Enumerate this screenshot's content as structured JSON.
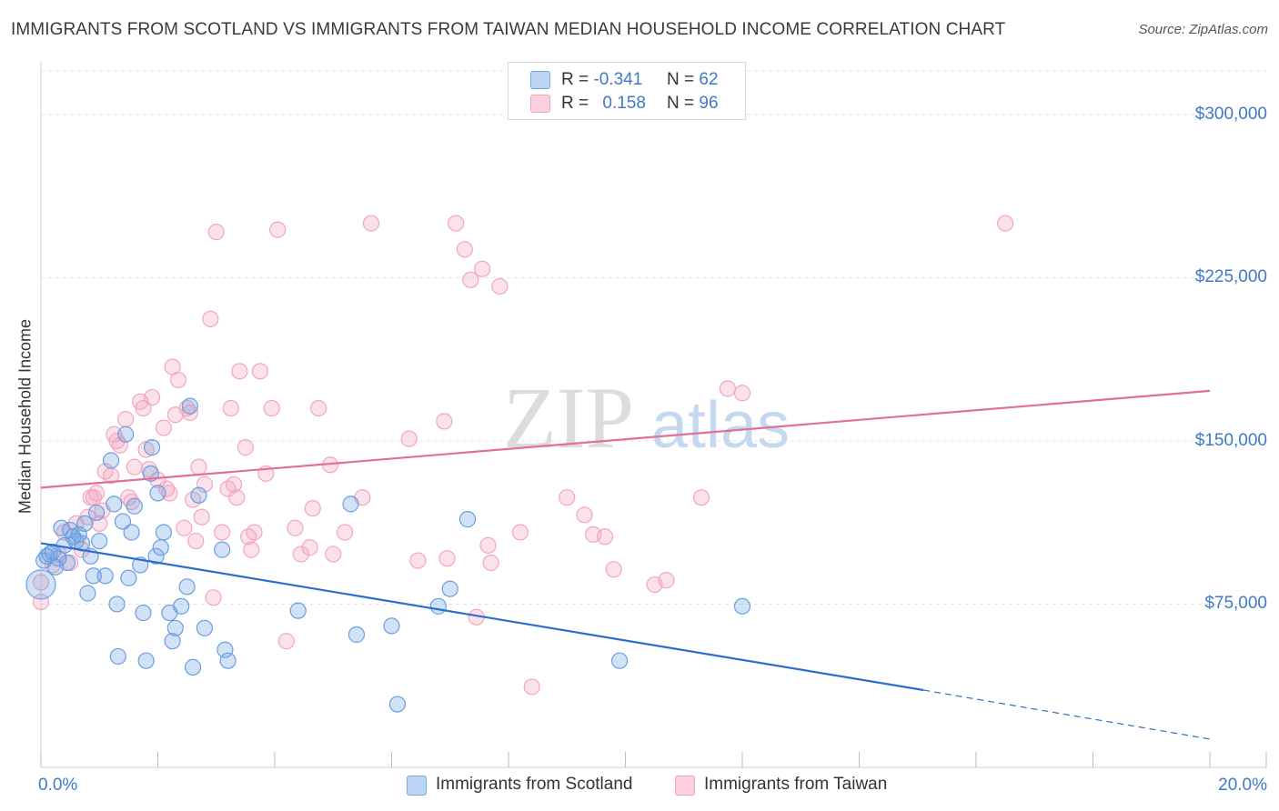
{
  "header": {
    "title": "IMMIGRANTS FROM SCOTLAND VS IMMIGRANTS FROM TAIWAN MEDIAN HOUSEHOLD INCOME CORRELATION CHART",
    "source": "Source: ZipAtlas.com"
  },
  "watermark": {
    "text_zip": "ZIP",
    "text_atlas": "atlas"
  },
  "legend": {
    "scotland": {
      "r_label": "R =",
      "r_value": "-0.341",
      "n_label": "N =",
      "n_value": "62",
      "color": "#8ab4e8"
    },
    "taiwan": {
      "r_label": "R =",
      "r_value": "0.158",
      "n_label": "N =",
      "n_value": "96",
      "color": "#f2a6bf"
    }
  },
  "chart_data": {
    "type": "scatter",
    "title": "IMMIGRANTS FROM SCOTLAND VS IMMIGRANTS FROM TAIWAN MEDIAN HOUSEHOLD INCOME CORRELATION CHART",
    "xlabel": "",
    "ylabel": "Median Household Income",
    "xlim": [
      0,
      20
    ],
    "ylim": [
      0,
      320000
    ],
    "x_tick_labels": [
      "0.0%",
      "20.0%"
    ],
    "y_ticks": [
      75000,
      150000,
      225000,
      300000
    ],
    "y_tick_labels": [
      "$75,000",
      "$150,000",
      "$225,000",
      "$300,000"
    ],
    "grid": true,
    "legend_position": "top-center",
    "series": [
      {
        "name": "Immigrants from Scotland",
        "color": "#6a9fe0",
        "line_color": "#2a6fcf",
        "trend": {
          "x0": 0,
          "y0": 103000,
          "x1": 15.1,
          "y1": 35500,
          "dash_to_x": 20,
          "dash_to_y": 13000
        },
        "points": [
          [
            0.1,
            97000
          ],
          [
            0.2,
            99000
          ],
          [
            0.3,
            96000
          ],
          [
            0.35,
            110000
          ],
          [
            0.4,
            102000
          ],
          [
            0.45,
            94000
          ],
          [
            0.5,
            109000
          ],
          [
            0.55,
            106000
          ],
          [
            0.6,
            104000
          ],
          [
            0.65,
            107000
          ],
          [
            0.7,
            103000
          ],
          [
            0.75,
            112000
          ],
          [
            0.8,
            80000
          ],
          [
            0.85,
            97000
          ],
          [
            0.9,
            88000
          ],
          [
            0.95,
            117000
          ],
          [
            1.0,
            104000
          ],
          [
            1.1,
            88000
          ],
          [
            1.2,
            141000
          ],
          [
            1.25,
            121000
          ],
          [
            1.3,
            75000
          ],
          [
            1.32,
            51000
          ],
          [
            1.4,
            113000
          ],
          [
            1.45,
            153000
          ],
          [
            1.5,
            87000
          ],
          [
            1.55,
            108000
          ],
          [
            1.6,
            120000
          ],
          [
            1.7,
            93000
          ],
          [
            1.75,
            71000
          ],
          [
            1.8,
            49000
          ],
          [
            1.88,
            135000
          ],
          [
            1.9,
            147000
          ],
          [
            1.97,
            97000
          ],
          [
            2.0,
            126000
          ],
          [
            2.05,
            101000
          ],
          [
            2.1,
            108000
          ],
          [
            2.2,
            71000
          ],
          [
            2.25,
            58000
          ],
          [
            2.3,
            64000
          ],
          [
            2.4,
            74000
          ],
          [
            2.5,
            83000
          ],
          [
            2.55,
            166000
          ],
          [
            2.6,
            46000
          ],
          [
            2.7,
            125000
          ],
          [
            2.8,
            64000
          ],
          [
            3.1,
            100000
          ],
          [
            3.15,
            54000
          ],
          [
            3.2,
            49000
          ],
          [
            4.4,
            72000
          ],
          [
            5.3,
            121000
          ],
          [
            5.4,
            61000
          ],
          [
            6.0,
            65000
          ],
          [
            6.1,
            29000
          ],
          [
            6.8,
            74000
          ],
          [
            7.0,
            82000
          ],
          [
            7.3,
            114000
          ],
          [
            9.9,
            49000
          ],
          [
            12.0,
            74000
          ],
          [
            0.05,
            95000
          ],
          [
            0.15,
            98000
          ],
          [
            0.25,
            92000
          ],
          [
            0.0,
            84000
          ]
        ]
      },
      {
        "name": "Immigrants from Taiwan",
        "color": "#f2a6bf",
        "line_color": "#e0709a",
        "trend": {
          "x0": 0,
          "y0": 128500,
          "x1": 20,
          "y1": 173000
        },
        "points": [
          [
            0.0,
            85000
          ],
          [
            0.0,
            76000
          ],
          [
            0.2,
            93000
          ],
          [
            0.3,
            98000
          ],
          [
            0.4,
            108000
          ],
          [
            0.5,
            94000
          ],
          [
            0.6,
            112000
          ],
          [
            0.7,
            100000
          ],
          [
            0.8,
            115000
          ],
          [
            0.9,
            124000
          ],
          [
            0.95,
            126000
          ],
          [
            1.0,
            112000
          ],
          [
            1.1,
            136000
          ],
          [
            1.2,
            134000
          ],
          [
            1.25,
            153000
          ],
          [
            1.3,
            150000
          ],
          [
            1.35,
            148000
          ],
          [
            1.45,
            160000
          ],
          [
            1.5,
            124000
          ],
          [
            1.55,
            122000
          ],
          [
            1.6,
            138000
          ],
          [
            1.7,
            168000
          ],
          [
            1.75,
            165000
          ],
          [
            1.8,
            146000
          ],
          [
            1.85,
            137000
          ],
          [
            1.9,
            170000
          ],
          [
            2.0,
            132000
          ],
          [
            2.1,
            156000
          ],
          [
            2.15,
            128000
          ],
          [
            2.2,
            126000
          ],
          [
            2.25,
            184000
          ],
          [
            2.3,
            162000
          ],
          [
            2.35,
            178000
          ],
          [
            2.45,
            110000
          ],
          [
            2.5,
            165000
          ],
          [
            2.55,
            163000
          ],
          [
            2.6,
            123000
          ],
          [
            2.7,
            138000
          ],
          [
            2.75,
            115000
          ],
          [
            2.8,
            130000
          ],
          [
            2.9,
            206000
          ],
          [
            2.95,
            78000
          ],
          [
            3.0,
            246000
          ],
          [
            3.1,
            108000
          ],
          [
            3.2,
            128000
          ],
          [
            3.25,
            165000
          ],
          [
            3.3,
            130000
          ],
          [
            3.35,
            124000
          ],
          [
            3.4,
            182000
          ],
          [
            3.5,
            147000
          ],
          [
            3.55,
            106000
          ],
          [
            3.65,
            108000
          ],
          [
            3.75,
            182000
          ],
          [
            3.85,
            135000
          ],
          [
            3.95,
            165000
          ],
          [
            4.05,
            247000
          ],
          [
            4.2,
            58000
          ],
          [
            4.35,
            110000
          ],
          [
            4.45,
            98000
          ],
          [
            4.6,
            101000
          ],
          [
            4.65,
            119000
          ],
          [
            4.75,
            165000
          ],
          [
            4.95,
            139000
          ],
          [
            5.0,
            98000
          ],
          [
            5.2,
            108000
          ],
          [
            5.5,
            124000
          ],
          [
            5.65,
            250000
          ],
          [
            6.3,
            151000
          ],
          [
            6.45,
            95000
          ],
          [
            6.9,
            159000
          ],
          [
            6.95,
            96000
          ],
          [
            7.1,
            250000
          ],
          [
            7.25,
            238000
          ],
          [
            7.35,
            224000
          ],
          [
            7.45,
            69000
          ],
          [
            7.55,
            229000
          ],
          [
            7.65,
            102000
          ],
          [
            7.7,
            94000
          ],
          [
            7.85,
            221000
          ],
          [
            8.2,
            108000
          ],
          [
            8.4,
            37000
          ],
          [
            9.0,
            124000
          ],
          [
            9.3,
            116000
          ],
          [
            9.45,
            107000
          ],
          [
            9.65,
            106000
          ],
          [
            9.8,
            91000
          ],
          [
            10.5,
            84000
          ],
          [
            10.7,
            86000
          ],
          [
            11.3,
            124000
          ],
          [
            11.75,
            174000
          ],
          [
            12.0,
            172000
          ],
          [
            16.5,
            250000
          ],
          [
            0.85,
            124000
          ],
          [
            1.05,
            118000
          ],
          [
            2.65,
            104000
          ],
          [
            3.6,
            100000
          ]
        ]
      }
    ]
  },
  "bottom_legend": {
    "scotland_label": "Immigrants from Scotland",
    "taiwan_label": "Immigrants from Taiwan"
  }
}
